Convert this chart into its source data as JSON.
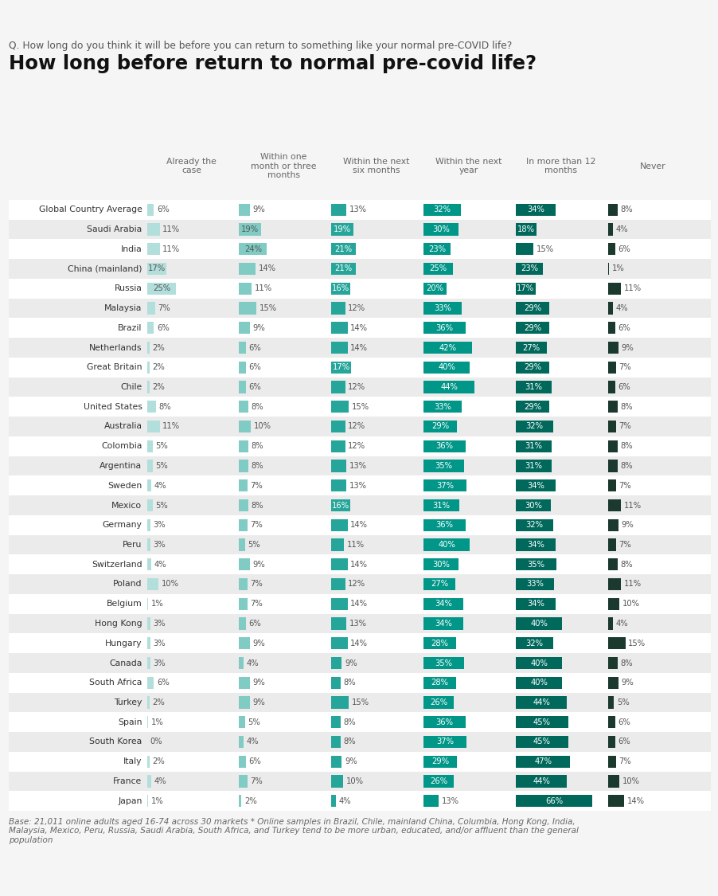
{
  "title": "How long before return to normal pre-covid life?",
  "subtitle": "Q. How long do you think it will be before you can return to something like your normal pre-COVID life?",
  "footnote": "Base: 21,011 online adults aged 16-74 across 30 markets * Online samples in Brazil, Chile, mainland China, Columbia, Hong Kong, India,\nMalaysia, Mexico, Peru, Russia, Saudi Arabia, South Africa, and Turkey tend to be more urban, educated, and/or affluent than the general\npopulation",
  "col_headers": [
    "Already the\ncase",
    "Within one\nmonth or three\nmonths",
    "Within the next\nsix months",
    "Within the next\nyear",
    "In more than 12\nmonths",
    "Never"
  ],
  "colors": [
    "#b2dfdb",
    "#80cbc4",
    "#26a69a",
    "#009688",
    "#00695c",
    "#1b3a2d"
  ],
  "countries": [
    "Global Country Average",
    "Saudi Arabia",
    "India",
    "China (mainland)",
    "Russia",
    "Malaysia",
    "Brazil",
    "Netherlands",
    "Great Britain",
    "Chile",
    "United States",
    "Australia",
    "Colombia",
    "Argentina",
    "Sweden",
    "Mexico",
    "Germany",
    "Peru",
    "Switzerland",
    "Poland",
    "Belgium",
    "Hong Kong",
    "Hungary",
    "Canada",
    "South Africa",
    "Turkey",
    "Spain",
    "South Korea",
    "Italy",
    "France",
    "Japan"
  ],
  "data": [
    [
      6,
      9,
      13,
      32,
      34,
      8
    ],
    [
      11,
      19,
      19,
      30,
      18,
      4
    ],
    [
      11,
      24,
      21,
      23,
      15,
      6
    ],
    [
      17,
      14,
      21,
      25,
      23,
      1
    ],
    [
      25,
      11,
      16,
      20,
      17,
      11
    ],
    [
      7,
      15,
      12,
      33,
      29,
      4
    ],
    [
      6,
      9,
      14,
      36,
      29,
      6
    ],
    [
      2,
      6,
      14,
      42,
      27,
      9
    ],
    [
      2,
      6,
      17,
      40,
      29,
      7
    ],
    [
      2,
      6,
      12,
      44,
      31,
      6
    ],
    [
      8,
      8,
      15,
      33,
      29,
      8
    ],
    [
      11,
      10,
      12,
      29,
      32,
      7
    ],
    [
      5,
      8,
      12,
      36,
      31,
      8
    ],
    [
      5,
      8,
      13,
      35,
      31,
      8
    ],
    [
      4,
      7,
      13,
      37,
      34,
      7
    ],
    [
      5,
      8,
      16,
      31,
      30,
      11
    ],
    [
      3,
      7,
      14,
      36,
      32,
      9
    ],
    [
      3,
      5,
      11,
      40,
      34,
      7
    ],
    [
      4,
      9,
      14,
      30,
      35,
      8
    ],
    [
      10,
      7,
      12,
      27,
      33,
      11
    ],
    [
      1,
      7,
      14,
      34,
      34,
      10
    ],
    [
      3,
      6,
      13,
      34,
      40,
      4
    ],
    [
      3,
      9,
      14,
      28,
      32,
      15
    ],
    [
      3,
      4,
      9,
      35,
      40,
      8
    ],
    [
      6,
      9,
      8,
      28,
      40,
      9
    ],
    [
      2,
      9,
      15,
      26,
      44,
      5
    ],
    [
      1,
      5,
      8,
      36,
      45,
      6
    ],
    [
      0,
      4,
      8,
      37,
      45,
      6
    ],
    [
      2,
      6,
      9,
      29,
      47,
      7
    ],
    [
      4,
      7,
      10,
      26,
      44,
      10
    ],
    [
      1,
      2,
      4,
      13,
      66,
      14
    ]
  ],
  "bg_color": "#f5f5f5",
  "row_alt_colors": [
    "#ffffff",
    "#ebebeb"
  ],
  "country_label_color": "#333333",
  "header_color": "#666666",
  "dark_text_color": "#555555",
  "light_text_color": "#ffffff",
  "title_color": "#111111",
  "subtitle_color": "#555555",
  "footnote_color": "#666666"
}
